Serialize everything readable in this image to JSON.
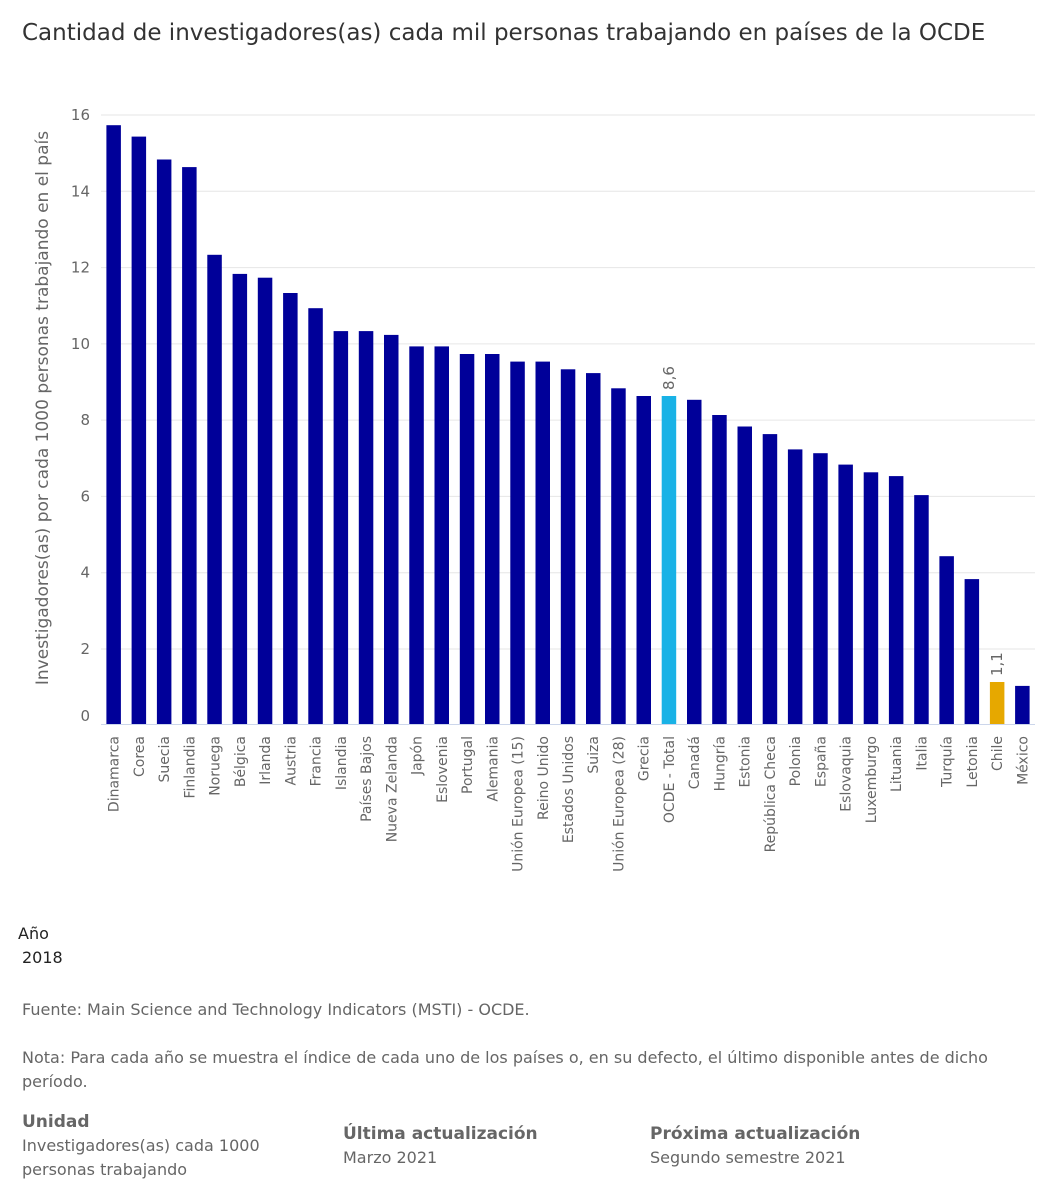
{
  "title": "Cantidad de investigadores(as) cada mil personas trabajando en países de la OCDE",
  "year_label": "Año",
  "year_value": "2018",
  "source": "Fuente: Main Science and Technology Indicators (MSTI) - OCDE.",
  "note": "Nota: Para cada año se muestra el índice de cada uno de los países o, en su defecto, el último disponible antes de dicho período.",
  "unit": {
    "heading": "Unidad",
    "text": "Investigadores(as) cada 1000 personas trabajando"
  },
  "last_update": {
    "heading": "Última actualización",
    "text": "Marzo 2021"
  },
  "next_update": {
    "heading": "Próxima actualización",
    "text": "Segundo semestre 2021"
  },
  "chart_data": {
    "type": "bar",
    "title": "",
    "xlabel": "",
    "ylabel": "Investigadores(as) por cada 1000 personas trabajando en el país",
    "ylim": [
      0,
      16.5
    ],
    "yticks": [
      0,
      2,
      4,
      6,
      8,
      10,
      12,
      14,
      16
    ],
    "grid": true,
    "legend": "none",
    "colors": {
      "default": "#000099",
      "oecd_total": "#19b2e6",
      "chile": "#e6a800",
      "grid": "#e6e6e6",
      "axis": "#ccd6eb"
    },
    "categories": [
      "Dinamarca",
      "Corea",
      "Suecia",
      "Finlandia",
      "Noruega",
      "Bélgica",
      "Irlanda",
      "Austria",
      "Francia",
      "Islandia",
      "Países Bajos",
      "Nueva Zelanda",
      "Japón",
      "Eslovenia",
      "Portugal",
      "Alemania",
      "Unión Europea (15)",
      "Reino Unido",
      "Estados Unidos",
      "Suiza",
      "Unión Europea (28)",
      "Grecia",
      "OCDE - Total",
      "Canadá",
      "Hungría",
      "Estonia",
      "República Checa",
      "Polonia",
      "España",
      "Eslovaquia",
      "Luxemburgo",
      "Lituania",
      "Italia",
      "Turquía",
      "Letonia",
      "Chile",
      "México"
    ],
    "values": [
      15.7,
      15.4,
      14.8,
      14.6,
      12.3,
      11.8,
      11.7,
      11.3,
      10.9,
      10.3,
      10.3,
      10.2,
      9.9,
      9.9,
      9.7,
      9.7,
      9.5,
      9.5,
      9.3,
      9.2,
      8.8,
      8.6,
      8.6,
      8.5,
      8.1,
      7.8,
      7.6,
      7.2,
      7.1,
      6.8,
      6.6,
      6.5,
      6.0,
      4.4,
      3.8,
      1.1,
      1.0
    ],
    "highlights": [
      {
        "category": "OCDE - Total",
        "color_key": "oecd_total",
        "label": "8,6"
      },
      {
        "category": "Chile",
        "color_key": "chile",
        "label": "1,1"
      }
    ]
  }
}
